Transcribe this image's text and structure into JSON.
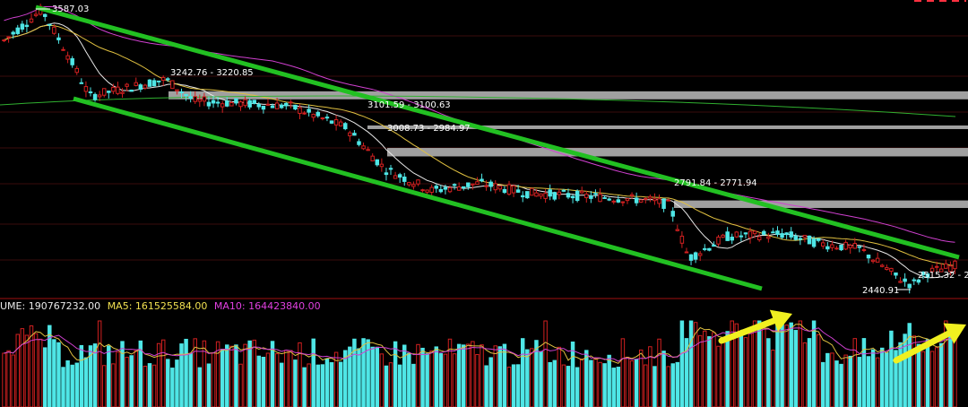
{
  "volume_header": {
    "volume": "UME: 190767232.00",
    "ma5": "MA5: 161525584.00",
    "ma10": "MA10: 164423840.00"
  },
  "price_labels": {
    "high": "3587.03",
    "zone1": "3242.76 - 3220.85",
    "zone2": "3101.59 - 3100.63",
    "zone3": "3008.73 - 2984.97",
    "zone4": "2791.84 - 2771.94",
    "zone5": "2515.32 - 2",
    "low": "2440.91"
  },
  "colors": {
    "background": "#000000",
    "up_candle": "#d12020",
    "down_candle": "#4fe6e6",
    "trend_channel": "#22c022",
    "resistance_zone": "#a0a0a0",
    "ma_short": "#e8e8e8",
    "ma_mid": "#e0c040",
    "ma_long": "#d040d0",
    "ma_longest": "#30b030",
    "annotation_arrow": "#f0f020",
    "separator": "#a01010"
  },
  "chart_data": {
    "type": "candlestick",
    "panes": [
      "price",
      "volume"
    ],
    "price_range": [
      2420,
      3620
    ],
    "price_high": 3587.03,
    "price_low": 2440.91,
    "resistance_zones": [
      {
        "high": 3242.76,
        "low": 3220.85
      },
      {
        "high": 3101.59,
        "low": 3100.63
      },
      {
        "high": 3008.73,
        "low": 2984.97
      },
      {
        "high": 2791.84,
        "low": 2771.94
      },
      {
        "high": 2515.32
      }
    ],
    "trend_channel": "descending",
    "volume_indicators": {
      "volume": 190767232.0,
      "ma5": 161525584.0,
      "ma10": 164423840.0
    },
    "annotations": [
      "arrow-volume-rising-1",
      "arrow-volume-rising-2"
    ]
  }
}
